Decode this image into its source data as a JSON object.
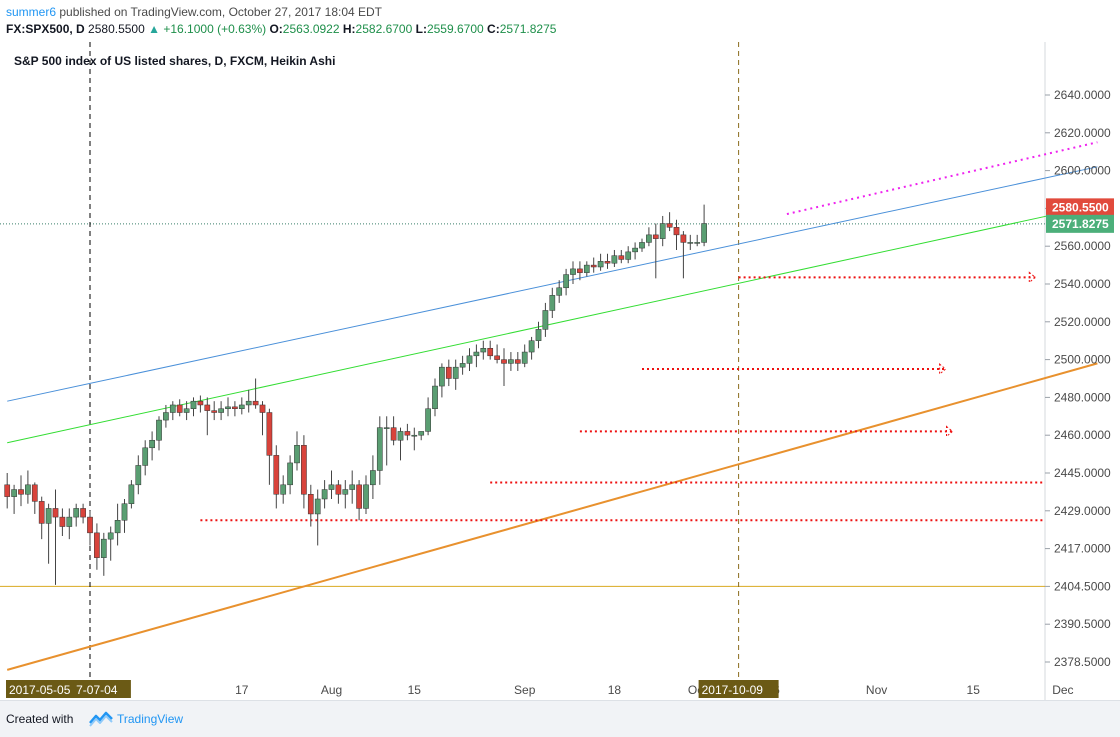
{
  "header": {
    "user": "summer6",
    "published_text": "published on TradingView.com, October 27, 2017 18:04 EDT",
    "symbol": "FX:SPX500, D",
    "last_price": "2580.5500",
    "change_text": "+16.1000 (+0.63%)",
    "o_label": "O:",
    "o_value": "2563.0922",
    "h_label": "H:",
    "h_value": "2582.6700",
    "l_label": "L:",
    "l_value": "2559.6700",
    "c_label": "C:",
    "c_value": "2571.8275"
  },
  "footer": {
    "created_with": "Created with",
    "brand": "TradingView"
  },
  "colors": {
    "up": "#5a9e72",
    "down": "#d8433b",
    "wick": "#444444",
    "blue_line": "#4a90d9",
    "green_line": "#33dd33",
    "orange_line": "#e8912e",
    "magenta": "#ee22ee",
    "red_dots": "#ee1111",
    "yellow_line": "#d9a920",
    "price_red": "#e14a3c",
    "price_green": "#4caf7a",
    "date_label_bg": "#6b5a15"
  },
  "chart_data": {
    "type": "candlestick",
    "title": "S&P 500 index of US listed shares, D, FXCM, Heikin Ashi",
    "price_scale": {
      "ticks": [
        2378.5,
        2390.5,
        2404.5,
        2417.0,
        2429.0,
        2445.0,
        2460.0,
        2480.0,
        2500.0,
        2520.0,
        2540.0,
        2560.0,
        2580.0,
        2600.0,
        2620.0,
        2640.0
      ],
      "tick_labels": [
        "2378.5000",
        "2390.5000",
        "2404.5000",
        "2417.0000",
        "2429.0000",
        "2445.0000",
        "2460.0000",
        "2480.0000",
        "2500.0000",
        "2520.0000",
        "2540.0000",
        "2560.0000",
        "2580.0000",
        "2600.0000",
        "2620.0000",
        "2640.0000"
      ],
      "last_price": "2580.5500",
      "close_price": "2571.8275"
    },
    "time_scale": {
      "tick_labels": [
        "17",
        "Aug",
        "15",
        "Sep",
        "18",
        "Oct",
        "16",
        "Nov",
        "15",
        "Dec"
      ],
      "tick_bars": [
        22,
        35,
        47,
        63,
        76,
        88,
        99,
        114,
        128,
        141
      ],
      "highlight_labels": [
        {
          "text": "2017-05-05",
          "bar": -8
        },
        {
          "text": "7-07-04",
          "bar": 0
        },
        {
          "text": "2017-10-09",
          "bar": 94
        }
      ]
    },
    "vlines": [
      {
        "bar": 0,
        "color": "#000000"
      },
      {
        "bar": 94,
        "color": "#8a6d1e"
      }
    ],
    "hlines": [
      {
        "price": 2404.5,
        "color": "#d9a920",
        "style": "solid"
      },
      {
        "price": 2571.8275,
        "color": "#3a7f6a",
        "style": "dotted"
      }
    ],
    "trend_lines": [
      {
        "name": "blue",
        "from": [
          -12,
          2478
        ],
        "to": [
          146,
          2602
        ],
        "color": "#4a90d9",
        "width": 1
      },
      {
        "name": "green",
        "from": [
          -12,
          2457
        ],
        "to": [
          140,
          2577
        ],
        "color": "#33dd33",
        "width": 1
      },
      {
        "name": "orange",
        "from": [
          -12,
          2376
        ],
        "to": [
          146,
          2498
        ],
        "color": "#e8912e",
        "width": 2
      },
      {
        "name": "magenta",
        "from": [
          101,
          2577
        ],
        "to": [
          146,
          2615
        ],
        "color": "#ee22ee",
        "width": 2,
        "dash": "2,4"
      }
    ],
    "support_lines": [
      {
        "from": [
          94,
          2543.5
        ],
        "to": [
          137,
          2543.5
        ],
        "arrow": true
      },
      {
        "from": [
          80,
          2495
        ],
        "to": [
          124,
          2495
        ],
        "arrow": true
      },
      {
        "from": [
          71,
          2462
        ],
        "to": [
          125,
          2462
        ],
        "arrow": true
      },
      {
        "from": [
          58,
          2441
        ],
        "to": [
          149,
          2441
        ],
        "arrow": false
      },
      {
        "from": [
          16,
          2426
        ],
        "to": [
          149,
          2426
        ],
        "arrow": false
      }
    ],
    "ohlc": [
      [
        -12,
        2440,
        2445,
        2430,
        2435
      ],
      [
        -11,
        2435,
        2440,
        2428,
        2438
      ],
      [
        -10,
        2438,
        2444,
        2431,
        2436
      ],
      [
        -9,
        2436,
        2446,
        2432,
        2440
      ],
      [
        -8,
        2440,
        2441,
        2428,
        2433
      ],
      [
        -7,
        2433,
        2435,
        2420,
        2425
      ],
      [
        -6,
        2425,
        2432,
        2412,
        2430
      ],
      [
        -5,
        2430,
        2438,
        2405,
        2427
      ],
      [
        -4,
        2427,
        2430,
        2421,
        2424
      ],
      [
        -3,
        2424,
        2430,
        2420,
        2427
      ],
      [
        -2,
        2427,
        2432,
        2424,
        2430
      ],
      [
        -1,
        2430,
        2432,
        2425,
        2427
      ],
      [
        0,
        2427,
        2429,
        2418,
        2422
      ],
      [
        1,
        2422,
        2425,
        2410,
        2414
      ],
      [
        2,
        2414,
        2422,
        2408,
        2420
      ],
      [
        3,
        2420,
        2424,
        2413,
        2422
      ],
      [
        4,
        2422,
        2432,
        2418,
        2426
      ],
      [
        5,
        2426,
        2434,
        2422,
        2432
      ],
      [
        6,
        2432,
        2442,
        2430,
        2440
      ],
      [
        7,
        2440,
        2452,
        2436,
        2448
      ],
      [
        8,
        2448,
        2458,
        2444,
        2455
      ],
      [
        9,
        2455,
        2462,
        2450,
        2458
      ],
      [
        10,
        2458,
        2470,
        2454,
        2468
      ],
      [
        11,
        2468,
        2476,
        2464,
        2472
      ],
      [
        12,
        2472,
        2478,
        2468,
        2476
      ],
      [
        13,
        2476,
        2479,
        2470,
        2472
      ],
      [
        14,
        2472,
        2478,
        2468,
        2474
      ],
      [
        15,
        2474,
        2480,
        2470,
        2478
      ],
      [
        16,
        2478,
        2481,
        2472,
        2476
      ],
      [
        17,
        2476,
        2480,
        2460,
        2473
      ],
      [
        18,
        2473,
        2478,
        2468,
        2472
      ],
      [
        19,
        2472,
        2478,
        2468,
        2474
      ],
      [
        20,
        2474,
        2480,
        2470,
        2475
      ],
      [
        21,
        2475,
        2478,
        2470,
        2474
      ],
      [
        22,
        2474,
        2480,
        2471,
        2476
      ],
      [
        23,
        2476,
        2484,
        2472,
        2478
      ],
      [
        24,
        2478,
        2490,
        2474,
        2476
      ],
      [
        25,
        2476,
        2478,
        2460,
        2472
      ],
      [
        26,
        2472,
        2474,
        2440,
        2452
      ],
      [
        27,
        2452,
        2456,
        2430,
        2436
      ],
      [
        28,
        2436,
        2444,
        2432,
        2440
      ],
      [
        29,
        2440,
        2452,
        2436,
        2449
      ],
      [
        30,
        2449,
        2462,
        2446,
        2456
      ],
      [
        31,
        2456,
        2460,
        2430,
        2436
      ],
      [
        32,
        2436,
        2440,
        2424,
        2428
      ],
      [
        33,
        2428,
        2438,
        2418,
        2434
      ],
      [
        34,
        2434,
        2442,
        2430,
        2438
      ],
      [
        35,
        2438,
        2446,
        2434,
        2440
      ],
      [
        36,
        2440,
        2442,
        2432,
        2436
      ],
      [
        37,
        2436,
        2442,
        2430,
        2438
      ],
      [
        38,
        2438,
        2446,
        2432,
        2440
      ],
      [
        39,
        2440,
        2442,
        2426,
        2430
      ],
      [
        40,
        2430,
        2444,
        2428,
        2440
      ],
      [
        41,
        2440,
        2452,
        2434,
        2446
      ],
      [
        42,
        2446,
        2470,
        2440,
        2464
      ],
      [
        43,
        2464,
        2470,
        2448,
        2464
      ],
      [
        44,
        2464,
        2470,
        2456,
        2458
      ],
      [
        45,
        2458,
        2464,
        2450,
        2462
      ],
      [
        46,
        2462,
        2466,
        2458,
        2460
      ],
      [
        47,
        2460,
        2464,
        2454,
        2460
      ],
      [
        48,
        2460,
        2462,
        2458,
        2462
      ],
      [
        49,
        2462,
        2480,
        2460,
        2474
      ],
      [
        50,
        2474,
        2490,
        2470,
        2486
      ],
      [
        51,
        2486,
        2498,
        2480,
        2496
      ],
      [
        52,
        2496,
        2500,
        2486,
        2490
      ],
      [
        53,
        2490,
        2500,
        2484,
        2496
      ],
      [
        54,
        2496,
        2502,
        2492,
        2498
      ],
      [
        55,
        2498,
        2506,
        2494,
        2502
      ],
      [
        56,
        2502,
        2508,
        2496,
        2504
      ],
      [
        57,
        2504,
        2510,
        2500,
        2506
      ],
      [
        58,
        2506,
        2510,
        2500,
        2502
      ],
      [
        59,
        2502,
        2508,
        2498,
        2500
      ],
      [
        60,
        2500,
        2506,
        2486,
        2498
      ],
      [
        61,
        2498,
        2504,
        2494,
        2500
      ],
      [
        62,
        2500,
        2504,
        2494,
        2498
      ],
      [
        63,
        2498,
        2508,
        2496,
        2504
      ],
      [
        64,
        2504,
        2512,
        2500,
        2510
      ],
      [
        65,
        2510,
        2520,
        2506,
        2516
      ],
      [
        66,
        2516,
        2530,
        2512,
        2526
      ],
      [
        67,
        2526,
        2538,
        2522,
        2534
      ],
      [
        68,
        2534,
        2542,
        2530,
        2538
      ],
      [
        69,
        2538,
        2548,
        2534,
        2545
      ],
      [
        70,
        2545,
        2552,
        2540,
        2548
      ],
      [
        71,
        2548,
        2552,
        2542,
        2546
      ],
      [
        72,
        2546,
        2552,
        2544,
        2550
      ],
      [
        73,
        2550,
        2554,
        2546,
        2549
      ],
      [
        74,
        2549,
        2556,
        2547,
        2552
      ],
      [
        75,
        2552,
        2556,
        2548,
        2551
      ],
      [
        76,
        2551,
        2558,
        2549,
        2555
      ],
      [
        77,
        2555,
        2558,
        2551,
        2553
      ],
      [
        78,
        2553,
        2560,
        2551,
        2557
      ],
      [
        79,
        2557,
        2562,
        2553,
        2559
      ],
      [
        80,
        2559,
        2564,
        2557,
        2562
      ],
      [
        81,
        2562,
        2570,
        2560,
        2566
      ],
      [
        82,
        2566,
        2572,
        2543,
        2564
      ],
      [
        83,
        2564,
        2576,
        2560,
        2572
      ],
      [
        84,
        2572,
        2578,
        2568,
        2570
      ],
      [
        85,
        2570,
        2574,
        2558,
        2566
      ],
      [
        86,
        2566,
        2568,
        2543,
        2562
      ],
      [
        87,
        2562,
        2566,
        2558,
        2562
      ],
      [
        88,
        2562,
        2566,
        2560,
        2562
      ],
      [
        89,
        2562,
        2582,
        2560,
        2572
      ]
    ]
  }
}
